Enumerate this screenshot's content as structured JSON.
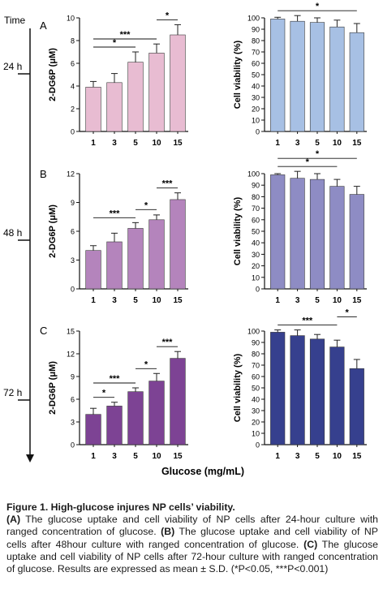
{
  "figure": {
    "time_header": "Time",
    "time_points": [
      "24 h",
      "48 h",
      "72 h"
    ],
    "panel_letters": [
      "A",
      "B",
      "C"
    ],
    "x_axis_title": "Glucose (mg/mL)"
  },
  "chart_data": [
    {
      "type": "bar",
      "panel": "A",
      "categories": [
        "1",
        "3",
        "5",
        "10",
        "15"
      ],
      "values": [
        3.9,
        4.3,
        6.1,
        6.9,
        8.5
      ],
      "errors": [
        0.5,
        0.8,
        0.9,
        0.8,
        0.9
      ],
      "ylabel": "2-DG6P (μM)",
      "ylim": [
        0,
        10
      ],
      "yticks": [
        0,
        2,
        4,
        6,
        8,
        10
      ],
      "color": "#e8bcd2",
      "significance": [
        {
          "from": 0,
          "to": 2,
          "label": "*"
        },
        {
          "from": 0,
          "to": 3,
          "label": "***"
        },
        {
          "from": 3,
          "to": 4,
          "label": "*"
        }
      ]
    },
    {
      "type": "bar",
      "panel": "A",
      "categories": [
        "1",
        "3",
        "5",
        "10",
        "15"
      ],
      "values": [
        99,
        97,
        96,
        92,
        87
      ],
      "errors": [
        1.5,
        5,
        4,
        6,
        8
      ],
      "ylabel": "Cell viability (%)",
      "ylim": [
        0,
        100
      ],
      "yticks": [
        0,
        10,
        20,
        30,
        40,
        50,
        60,
        70,
        80,
        90,
        100
      ],
      "color": "#a7c0e4",
      "significance": [
        {
          "from": 0,
          "to": 4,
          "label": "*"
        }
      ]
    },
    {
      "type": "bar",
      "panel": "B",
      "categories": [
        "1",
        "3",
        "5",
        "10",
        "15"
      ],
      "values": [
        4.0,
        4.9,
        6.3,
        7.2,
        9.3
      ],
      "errors": [
        0.5,
        0.9,
        0.6,
        0.5,
        0.7
      ],
      "ylabel": "2-DG6P (μM)",
      "ylim": [
        0,
        12
      ],
      "yticks": [
        0,
        3,
        6,
        9,
        12
      ],
      "color": "#b484bc",
      "significance": [
        {
          "from": 0,
          "to": 2,
          "label": "***"
        },
        {
          "from": 2,
          "to": 3,
          "label": "*"
        },
        {
          "from": 3,
          "to": 4,
          "label": "***"
        }
      ]
    },
    {
      "type": "bar",
      "panel": "B",
      "categories": [
        "1",
        "3",
        "5",
        "10",
        "15"
      ],
      "values": [
        99,
        96,
        95,
        89,
        82
      ],
      "errors": [
        1,
        6,
        5,
        6,
        7
      ],
      "ylabel": "Cell viability (%)",
      "ylim": [
        0,
        100
      ],
      "yticks": [
        0,
        10,
        20,
        30,
        40,
        50,
        60,
        70,
        80,
        90,
        100
      ],
      "color": "#8e8cc4",
      "significance": [
        {
          "from": 0,
          "to": 3,
          "label": "*"
        },
        {
          "from": 0,
          "to": 4,
          "label": "*"
        }
      ]
    },
    {
      "type": "bar",
      "panel": "C",
      "categories": [
        "1",
        "3",
        "5",
        "10",
        "15"
      ],
      "values": [
        4.0,
        5.1,
        7.0,
        8.4,
        11.4
      ],
      "errors": [
        0.8,
        0.5,
        0.5,
        1.0,
        0.9
      ],
      "ylabel": "2-DG6P (μM)",
      "ylim": [
        0,
        15
      ],
      "yticks": [
        0,
        3,
        6,
        9,
        12,
        15
      ],
      "color": "#7d4394",
      "significance": [
        {
          "from": 0,
          "to": 1,
          "label": "*"
        },
        {
          "from": 0,
          "to": 2,
          "label": "***"
        },
        {
          "from": 2,
          "to": 3,
          "label": "*"
        },
        {
          "from": 3,
          "to": 4,
          "label": "***"
        }
      ]
    },
    {
      "type": "bar",
      "panel": "C",
      "categories": [
        "1",
        "3",
        "5",
        "10",
        "15"
      ],
      "values": [
        99,
        96,
        93,
        86,
        67
      ],
      "errors": [
        2,
        5,
        4,
        6,
        8
      ],
      "ylabel": "Cell viability (%)",
      "ylim": [
        0,
        100
      ],
      "yticks": [
        0,
        10,
        20,
        30,
        40,
        50,
        60,
        70,
        80,
        90,
        100
      ],
      "color": "#36408e",
      "significance": [
        {
          "from": 0,
          "to": 3,
          "label": "***"
        },
        {
          "from": 3,
          "to": 4,
          "label": "*"
        }
      ]
    }
  ],
  "caption": {
    "title": "Figure 1. High-glucose injures NP cells’ viability.",
    "text_a_label": "(A)",
    "text_a": " The glucose uptake and cell viability of NP cells after 24-hour culture with ranged concentration of glucose. ",
    "text_b_label": "(B)",
    "text_b": " The glucose uptake and cell viability of NP cells after 48hour culture with ranged concentration of glucose. ",
    "text_c_label": "(C)",
    "text_c": " The glucose uptake and cell viability of NP cells after 72-hour culture with ranged concentration of glucose. Results are expressed as mean ± S.D. (*P<0.05, ***P<0.001)"
  }
}
